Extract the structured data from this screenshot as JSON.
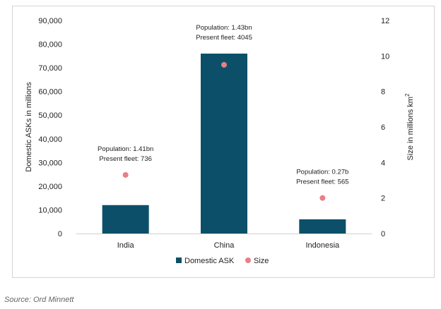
{
  "chart_data": {
    "type": "bar",
    "categories": [
      "India",
      "China",
      "Indonesia"
    ],
    "series": [
      {
        "name": "Domestic ASK",
        "kind": "bar",
        "axis": "left",
        "color": "#0b5068",
        "values": [
          12000,
          76000,
          6000
        ]
      },
      {
        "name": "Size",
        "kind": "scatter",
        "axis": "right",
        "color": "#e87f86",
        "values": [
          3.3,
          9.5,
          2.0
        ]
      }
    ],
    "ylabel": "Domestic ASKs in millions",
    "y2label_main": "Size in millions km",
    "y2label_sup": "2",
    "ylim": [
      0,
      90000
    ],
    "y2lim": [
      0,
      12
    ],
    "yticks": [
      "90,000",
      "80,000",
      "70,000",
      "60,000",
      "50,000",
      "40,000",
      "30,000",
      "20,000",
      "10,000",
      "0"
    ],
    "y2ticks": [
      "12",
      "10",
      "8",
      "6",
      "4",
      "2",
      "0"
    ],
    "annotations": [
      {
        "category": "India",
        "lines": [
          "Population: 1.41bn",
          "Present fleet: 736"
        ]
      },
      {
        "category": "China",
        "lines": [
          "Population: 1.43bn",
          "Present fleet: 4045"
        ]
      },
      {
        "category": "Indonesia",
        "lines": [
          "Population: 0.27b",
          "Present fleet: 565"
        ]
      }
    ],
    "legend": {
      "position": "bottom",
      "items": [
        "Domestic ASK",
        "Size"
      ]
    },
    "grid": false
  },
  "source": "Source:  Ord Minnett"
}
